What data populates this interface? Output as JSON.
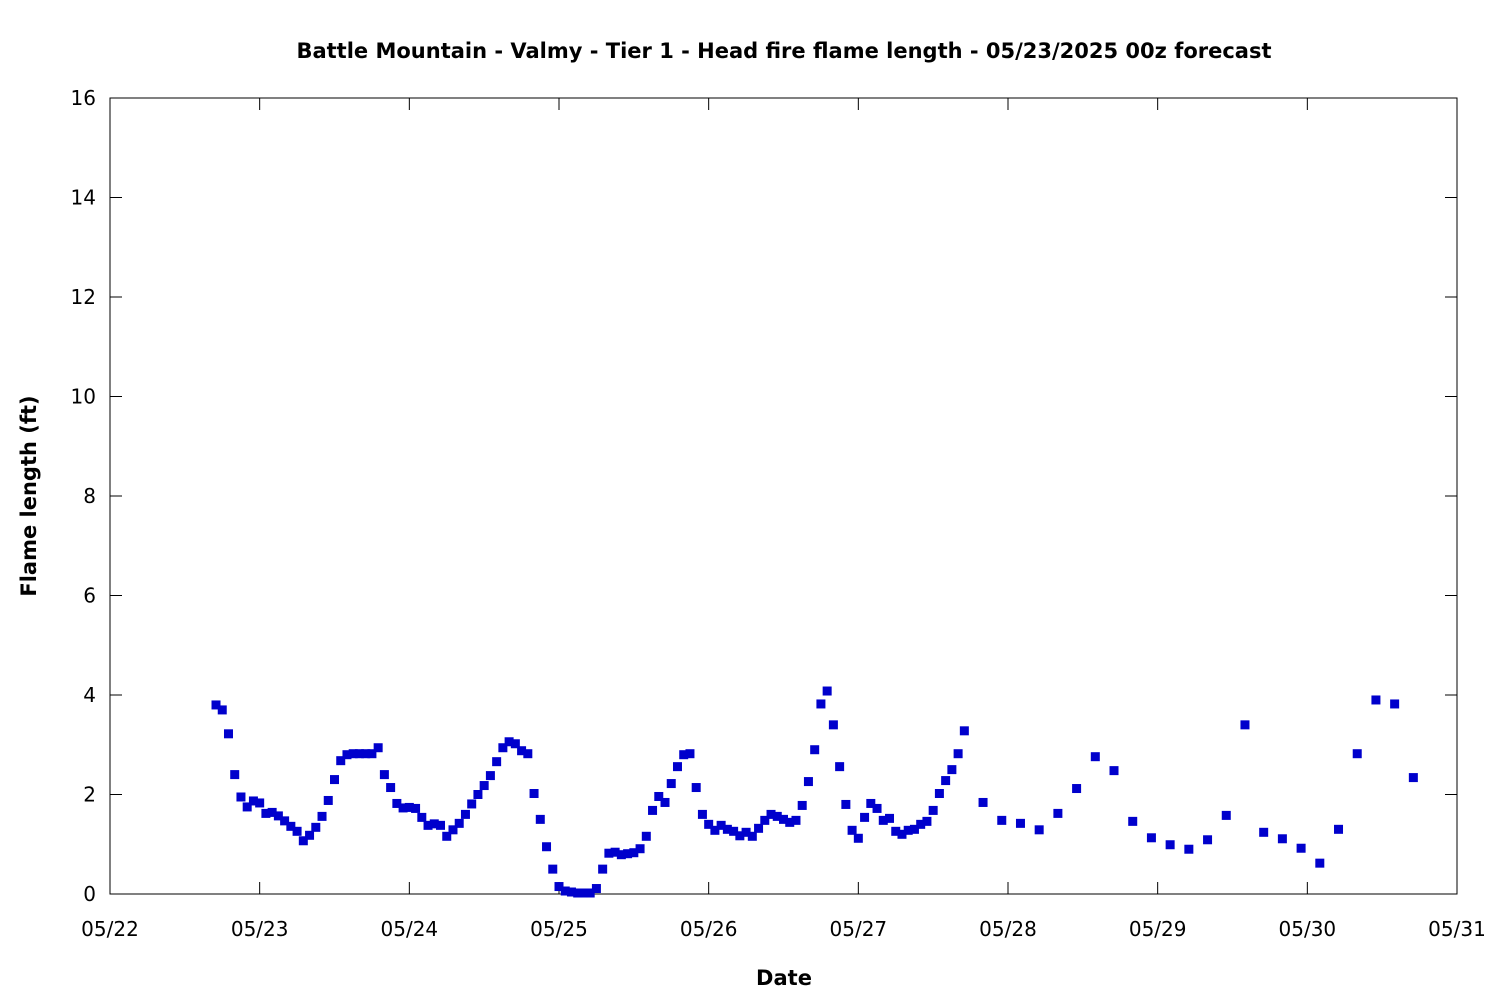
{
  "chart_data": {
    "type": "scatter",
    "title": "Battle Mountain - Valmy - Tier 1 - Head fire flame length - 05/23/2025 00z forecast",
    "xlabel": "Date",
    "ylabel": "Flame length (ft)",
    "xlim": [
      "2025-05-22",
      "2025-05-31"
    ],
    "ylim": [
      0,
      16
    ],
    "x_ticks": [
      "05/22",
      "05/23",
      "05/24",
      "05/25",
      "05/26",
      "05/27",
      "05/28",
      "05/29",
      "05/30",
      "05/31"
    ],
    "y_ticks": [
      0,
      2,
      4,
      6,
      8,
      10,
      12,
      14,
      16
    ],
    "grid": false,
    "legend": "none",
    "marker_color": "#0000cc",
    "series": [
      {
        "points": [
          [
            "2025-05-22 17:00",
            3.8
          ],
          [
            "2025-05-22 18:00",
            3.7
          ],
          [
            "2025-05-22 19:00",
            3.22
          ],
          [
            "2025-05-22 20:00",
            2.4
          ],
          [
            "2025-05-22 21:00",
            1.95
          ],
          [
            "2025-05-22 22:00",
            1.75
          ],
          [
            "2025-05-22 23:00",
            1.87
          ],
          [
            "2025-05-23 00:00",
            1.83
          ],
          [
            "2025-05-23 01:00",
            1.62
          ],
          [
            "2025-05-23 02:00",
            1.64
          ],
          [
            "2025-05-23 03:00",
            1.57
          ],
          [
            "2025-05-23 04:00",
            1.47
          ],
          [
            "2025-05-23 05:00",
            1.36
          ],
          [
            "2025-05-23 06:00",
            1.26
          ],
          [
            "2025-05-23 07:00",
            1.07
          ],
          [
            "2025-05-23 08:00",
            1.18
          ],
          [
            "2025-05-23 09:00",
            1.34
          ],
          [
            "2025-05-23 10:00",
            1.56
          ],
          [
            "2025-05-23 11:00",
            1.88
          ],
          [
            "2025-05-23 12:00",
            2.3
          ],
          [
            "2025-05-23 13:00",
            2.68
          ],
          [
            "2025-05-23 14:00",
            2.8
          ],
          [
            "2025-05-23 15:00",
            2.82
          ],
          [
            "2025-05-23 16:00",
            2.82
          ],
          [
            "2025-05-23 17:00",
            2.82
          ],
          [
            "2025-05-23 18:00",
            2.82
          ],
          [
            "2025-05-23 19:00",
            2.94
          ],
          [
            "2025-05-23 20:00",
            2.4
          ],
          [
            "2025-05-23 21:00",
            2.14
          ],
          [
            "2025-05-23 22:00",
            1.82
          ],
          [
            "2025-05-23 23:00",
            1.73
          ],
          [
            "2025-05-24 00:00",
            1.74
          ],
          [
            "2025-05-24 01:00",
            1.72
          ],
          [
            "2025-05-24 02:00",
            1.54
          ],
          [
            "2025-05-24 03:00",
            1.38
          ],
          [
            "2025-05-24 04:00",
            1.41
          ],
          [
            "2025-05-24 05:00",
            1.38
          ],
          [
            "2025-05-24 06:00",
            1.16
          ],
          [
            "2025-05-24 07:00",
            1.29
          ],
          [
            "2025-05-24 08:00",
            1.42
          ],
          [
            "2025-05-24 09:00",
            1.6
          ],
          [
            "2025-05-24 10:00",
            1.81
          ],
          [
            "2025-05-24 11:00",
            2.0
          ],
          [
            "2025-05-24 12:00",
            2.18
          ],
          [
            "2025-05-24 13:00",
            2.38
          ],
          [
            "2025-05-24 14:00",
            2.66
          ],
          [
            "2025-05-24 15:00",
            2.94
          ],
          [
            "2025-05-24 16:00",
            3.06
          ],
          [
            "2025-05-24 17:00",
            3.02
          ],
          [
            "2025-05-24 18:00",
            2.88
          ],
          [
            "2025-05-24 19:00",
            2.82
          ],
          [
            "2025-05-24 20:00",
            2.02
          ],
          [
            "2025-05-24 21:00",
            1.5
          ],
          [
            "2025-05-24 22:00",
            0.95
          ],
          [
            "2025-05-24 23:00",
            0.5
          ],
          [
            "2025-05-25 00:00",
            0.15
          ],
          [
            "2025-05-25 01:00",
            0.06
          ],
          [
            "2025-05-25 02:00",
            0.04
          ],
          [
            "2025-05-25 03:00",
            0.02
          ],
          [
            "2025-05-25 04:00",
            0.02
          ],
          [
            "2025-05-25 05:00",
            0.02
          ],
          [
            "2025-05-25 06:00",
            0.11
          ],
          [
            "2025-05-25 07:00",
            0.5
          ],
          [
            "2025-05-25 08:00",
            0.82
          ],
          [
            "2025-05-25 09:00",
            0.84
          ],
          [
            "2025-05-25 10:00",
            0.79
          ],
          [
            "2025-05-25 11:00",
            0.81
          ],
          [
            "2025-05-25 12:00",
            0.83
          ],
          [
            "2025-05-25 13:00",
            0.91
          ],
          [
            "2025-05-25 14:00",
            1.16
          ],
          [
            "2025-05-25 15:00",
            1.68
          ],
          [
            "2025-05-25 16:00",
            1.96
          ],
          [
            "2025-05-25 17:00",
            1.84
          ],
          [
            "2025-05-25 18:00",
            2.22
          ],
          [
            "2025-05-25 19:00",
            2.56
          ],
          [
            "2025-05-25 20:00",
            2.8
          ],
          [
            "2025-05-25 21:00",
            2.82
          ],
          [
            "2025-05-25 22:00",
            2.14
          ],
          [
            "2025-05-25 23:00",
            1.6
          ],
          [
            "2025-05-26 00:00",
            1.4
          ],
          [
            "2025-05-26 01:00",
            1.28
          ],
          [
            "2025-05-26 02:00",
            1.38
          ],
          [
            "2025-05-26 03:00",
            1.3
          ],
          [
            "2025-05-26 04:00",
            1.26
          ],
          [
            "2025-05-26 05:00",
            1.17
          ],
          [
            "2025-05-26 06:00",
            1.24
          ],
          [
            "2025-05-26 07:00",
            1.16
          ],
          [
            "2025-05-26 08:00",
            1.32
          ],
          [
            "2025-05-26 09:00",
            1.48
          ],
          [
            "2025-05-26 10:00",
            1.6
          ],
          [
            "2025-05-26 11:00",
            1.56
          ],
          [
            "2025-05-26 12:00",
            1.5
          ],
          [
            "2025-05-26 13:00",
            1.44
          ],
          [
            "2025-05-26 14:00",
            1.48
          ],
          [
            "2025-05-26 15:00",
            1.78
          ],
          [
            "2025-05-26 16:00",
            2.26
          ],
          [
            "2025-05-26 17:00",
            2.9
          ],
          [
            "2025-05-26 18:00",
            3.82
          ],
          [
            "2025-05-26 19:00",
            4.08
          ],
          [
            "2025-05-26 20:00",
            3.4
          ],
          [
            "2025-05-26 21:00",
            2.56
          ],
          [
            "2025-05-26 22:00",
            1.8
          ],
          [
            "2025-05-26 23:00",
            1.28
          ],
          [
            "2025-05-27 00:00",
            1.12
          ],
          [
            "2025-05-27 01:00",
            1.54
          ],
          [
            "2025-05-27 02:00",
            1.82
          ],
          [
            "2025-05-27 03:00",
            1.72
          ],
          [
            "2025-05-27 04:00",
            1.48
          ],
          [
            "2025-05-27 05:00",
            1.52
          ],
          [
            "2025-05-27 06:00",
            1.26
          ],
          [
            "2025-05-27 07:00",
            1.2
          ],
          [
            "2025-05-27 08:00",
            1.28
          ],
          [
            "2025-05-27 09:00",
            1.3
          ],
          [
            "2025-05-27 10:00",
            1.4
          ],
          [
            "2025-05-27 11:00",
            1.46
          ],
          [
            "2025-05-27 12:00",
            1.68
          ],
          [
            "2025-05-27 13:00",
            2.02
          ],
          [
            "2025-05-27 14:00",
            2.28
          ],
          [
            "2025-05-27 15:00",
            2.5
          ],
          [
            "2025-05-27 16:00",
            2.82
          ],
          [
            "2025-05-27 17:00",
            3.28
          ],
          [
            "2025-05-27 20:00",
            1.84
          ],
          [
            "2025-05-27 23:00",
            1.48
          ],
          [
            "2025-05-28 02:00",
            1.42
          ],
          [
            "2025-05-28 05:00",
            1.29
          ],
          [
            "2025-05-28 08:00",
            1.62
          ],
          [
            "2025-05-28 11:00",
            2.12
          ],
          [
            "2025-05-28 14:00",
            2.76
          ],
          [
            "2025-05-28 17:00",
            2.48
          ],
          [
            "2025-05-28 20:00",
            1.46
          ],
          [
            "2025-05-28 23:00",
            1.13
          ],
          [
            "2025-05-29 02:00",
            0.99
          ],
          [
            "2025-05-29 05:00",
            0.9
          ],
          [
            "2025-05-29 08:00",
            1.09
          ],
          [
            "2025-05-29 11:00",
            1.58
          ],
          [
            "2025-05-29 14:00",
            3.4
          ],
          [
            "2025-05-29 17:00",
            1.24
          ],
          [
            "2025-05-29 20:00",
            1.11
          ],
          [
            "2025-05-29 23:00",
            0.92
          ],
          [
            "2025-05-30 02:00",
            0.62
          ],
          [
            "2025-05-30 05:00",
            1.3
          ],
          [
            "2025-05-30 08:00",
            2.82
          ],
          [
            "2025-05-30 11:00",
            3.9
          ],
          [
            "2025-05-30 14:00",
            3.82
          ],
          [
            "2025-05-30 17:00",
            2.34
          ]
        ]
      }
    ]
  }
}
